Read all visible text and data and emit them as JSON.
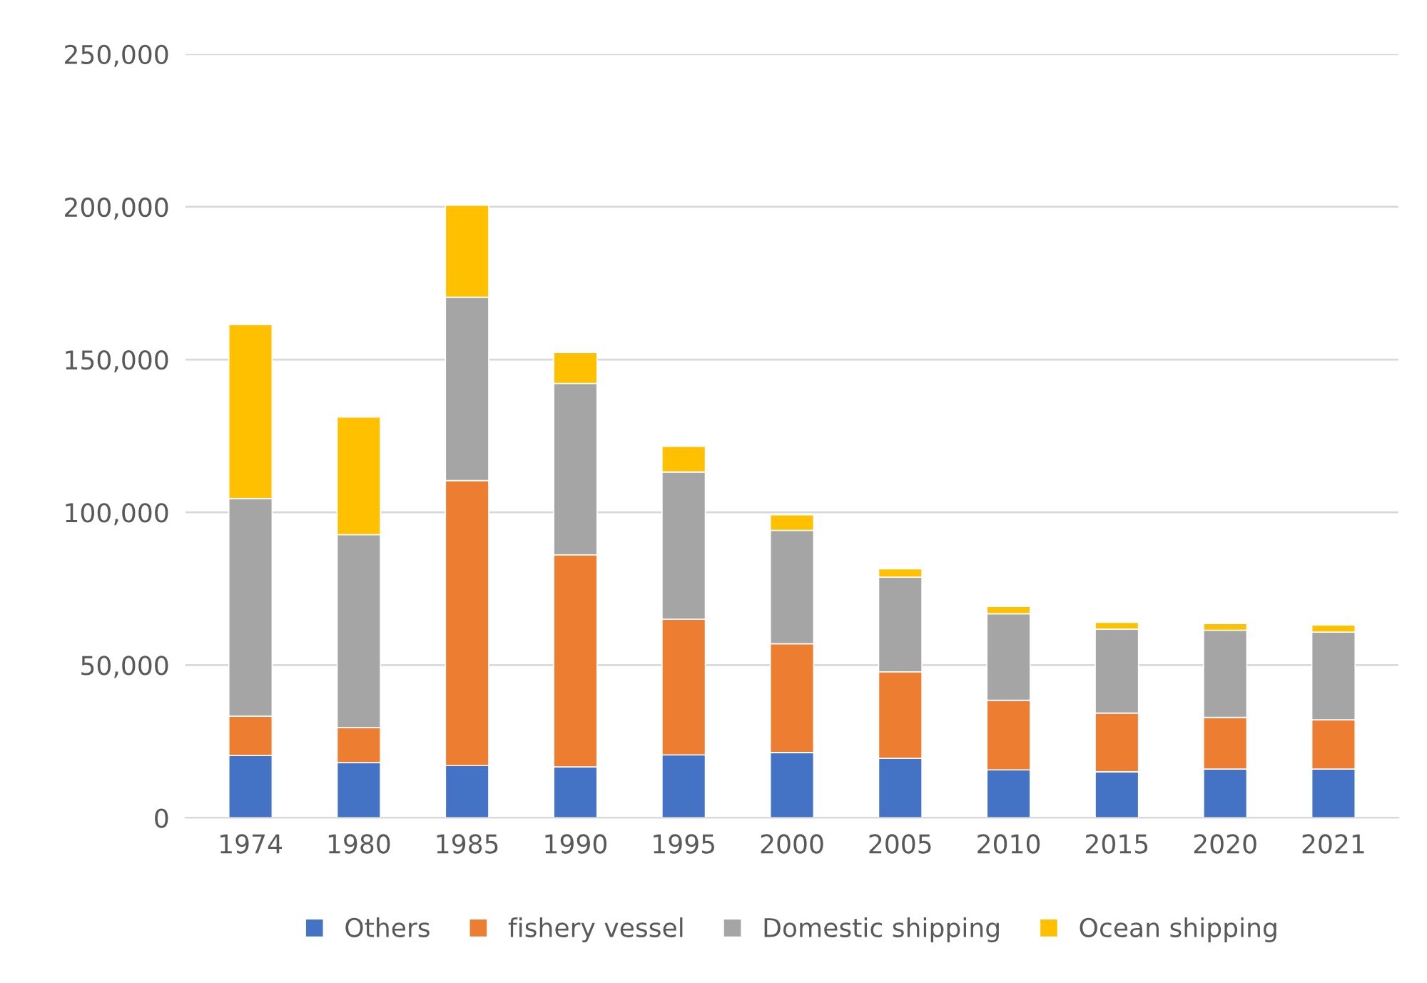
{
  "chart_data": {
    "type": "bar",
    "stacked": true,
    "categories": [
      "1974",
      "1980",
      "1985",
      "1990",
      "1995",
      "2000",
      "2005",
      "2010",
      "2015",
      "2020",
      "2021"
    ],
    "series": [
      {
        "name": "Others",
        "color": "#4472c4",
        "values": [
          20400,
          18100,
          17100,
          16700,
          20600,
          21400,
          19500,
          15700,
          15100,
          16000,
          16000
        ]
      },
      {
        "name": "fishery vessel",
        "color": "#ed7d31",
        "values": [
          12900,
          11500,
          93300,
          69400,
          44400,
          35600,
          28300,
          22800,
          19200,
          16900,
          16100
        ]
      },
      {
        "name": "Domestic shipping",
        "color": "#a5a5a5",
        "values": [
          71200,
          63100,
          60000,
          56100,
          48200,
          37100,
          31000,
          28300,
          27500,
          28500,
          28700
        ]
      },
      {
        "name": "Ocean shipping",
        "color": "#ffc000",
        "values": [
          57000,
          38500,
          30100,
          10100,
          8400,
          5100,
          2700,
          2400,
          2200,
          2200,
          2300
        ]
      }
    ],
    "ylim": [
      0,
      250000
    ],
    "yticks": [
      {
        "value": 0,
        "label": "0"
      },
      {
        "value": 50000,
        "label": "50,000"
      },
      {
        "value": 100000,
        "label": "100,000"
      },
      {
        "value": 150000,
        "label": "150,000"
      },
      {
        "value": 200000,
        "label": "200,000"
      },
      {
        "value": 250000,
        "label": "250,000"
      }
    ],
    "grid": "y",
    "legend": "bottom"
  }
}
